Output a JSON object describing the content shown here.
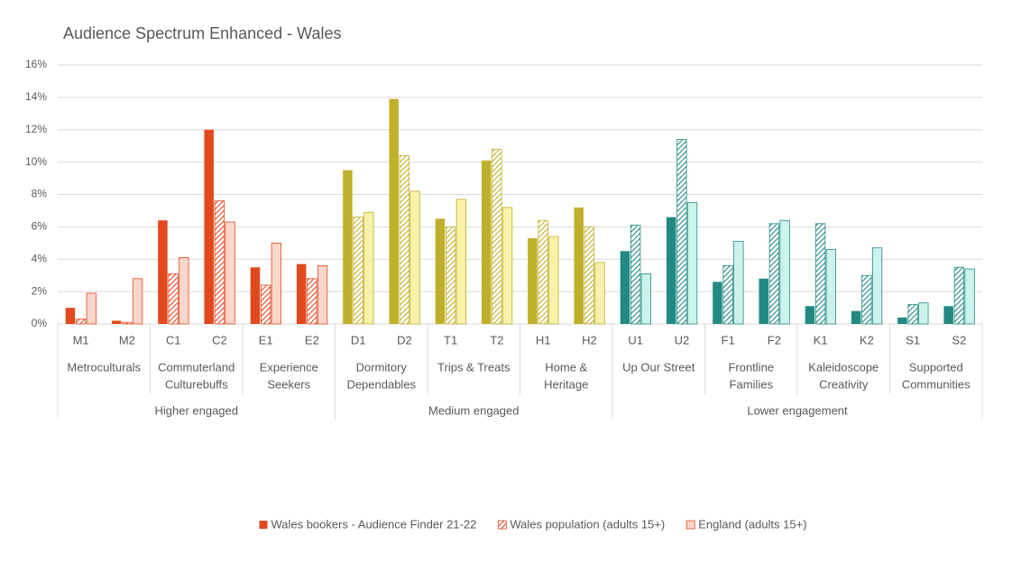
{
  "chart_data": {
    "type": "bar",
    "title": "Audience Spectrum Enhanced - Wales",
    "groups": [
      {
        "name": "Higher engaged",
        "colors": {
          "dark": "#e2491f",
          "light": "#fcd6ca"
        },
        "segments": [
          {
            "label": [
              "Metroculturals"
            ],
            "categories": [
              "M1",
              "M2"
            ]
          },
          {
            "label": [
              "Commuterland",
              "Culturebuffs"
            ],
            "categories": [
              "C1",
              "C2"
            ]
          },
          {
            "label": [
              "Experience",
              "Seekers"
            ],
            "categories": [
              "E1",
              "E2"
            ]
          }
        ]
      },
      {
        "name": "Medium engaged",
        "colors": {
          "dark": "#bfb02c",
          "light": "#f8f1a9"
        },
        "segments": [
          {
            "label": [
              "Dormitory",
              "Dependables"
            ],
            "categories": [
              "D1",
              "D2"
            ]
          },
          {
            "label": [
              "Trips & Treats"
            ],
            "categories": [
              "T1",
              "T2"
            ]
          },
          {
            "label": [
              "Home &",
              "Heritage"
            ],
            "categories": [
              "H1",
              "H2"
            ]
          }
        ]
      },
      {
        "name": "Lower engagement",
        "colors": {
          "dark": "#228a82",
          "light": "#cbf3eb"
        },
        "segments": [
          {
            "label": [
              "Up Our Street"
            ],
            "categories": [
              "U1",
              "U2"
            ]
          },
          {
            "label": [
              "Frontline",
              "Families"
            ],
            "categories": [
              "F1",
              "F2"
            ]
          },
          {
            "label": [
              "Kaleidoscope",
              "Creativity"
            ],
            "categories": [
              "K1",
              "K2"
            ]
          },
          {
            "label": [
              "Supported",
              "Communities"
            ],
            "categories": [
              "S1",
              "S2"
            ]
          }
        ]
      }
    ],
    "series": [
      {
        "name": "Wales bookers - Audience Finder 21-22",
        "style": "solid",
        "values": [
          1.0,
          0.2,
          6.4,
          12.0,
          3.5,
          3.7,
          9.5,
          13.9,
          6.5,
          10.1,
          5.3,
          7.2,
          4.5,
          6.6,
          2.6,
          2.8,
          1.1,
          0.8,
          0.4,
          1.1
        ]
      },
      {
        "name": "Wales population (adults 15+)",
        "style": "hatched",
        "values": [
          0.3,
          0.1,
          3.1,
          7.6,
          2.4,
          2.8,
          6.6,
          10.4,
          6.0,
          10.8,
          6.4,
          6.0,
          6.1,
          11.4,
          3.6,
          6.2,
          6.2,
          3.0,
          1.2,
          3.5
        ]
      },
      {
        "name": "England (adults 15+)",
        "style": "outlined",
        "values": [
          1.9,
          2.8,
          4.1,
          6.3,
          5.0,
          3.6,
          6.9,
          8.2,
          7.7,
          7.2,
          5.4,
          3.8,
          3.1,
          7.5,
          5.1,
          6.4,
          4.6,
          4.7,
          1.3,
          3.4
        ]
      }
    ],
    "ylim": [
      0,
      16
    ],
    "yticks": [
      {
        "value": 0,
        "label": "0%"
      },
      {
        "value": 2,
        "label": "2%"
      },
      {
        "value": 4,
        "label": "4%"
      },
      {
        "value": 6,
        "label": "6%"
      },
      {
        "value": 8,
        "label": "8%"
      },
      {
        "value": 10,
        "label": "10%"
      },
      {
        "value": 12,
        "label": "12%"
      },
      {
        "value": 14,
        "label": "14%"
      },
      {
        "value": 16,
        "label": "16%"
      }
    ],
    "grid": true,
    "legend": "bottom"
  }
}
